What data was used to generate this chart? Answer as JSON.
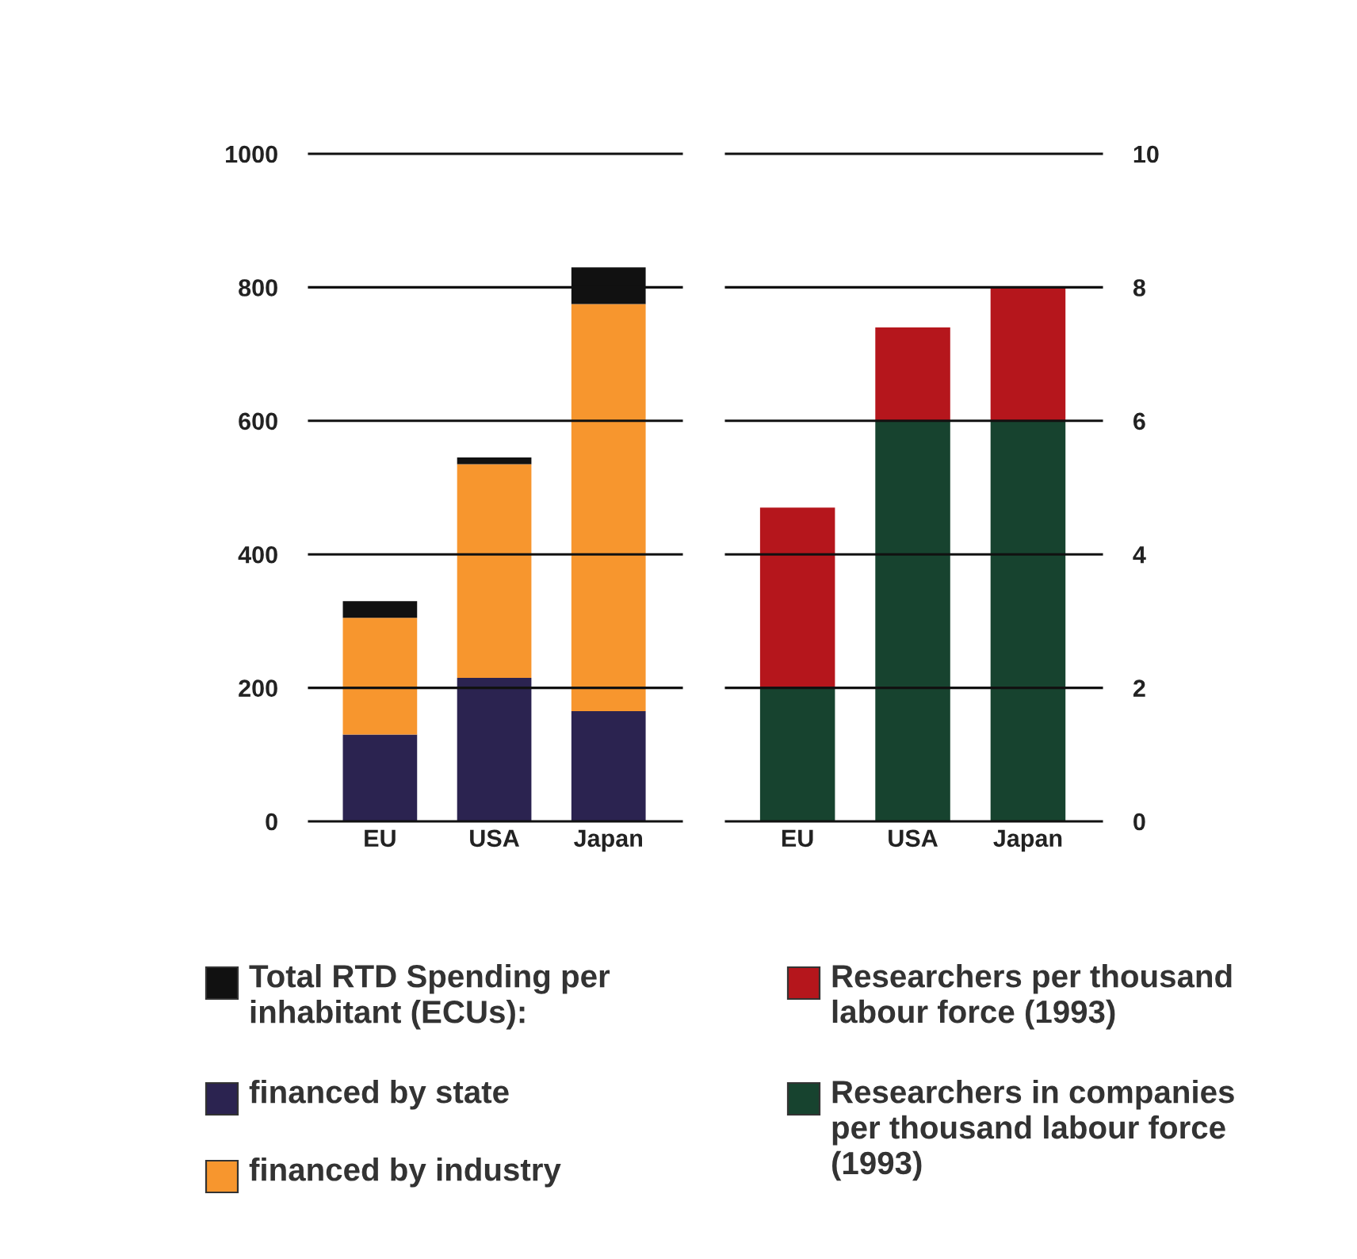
{
  "chart_data": [
    {
      "type": "bar",
      "stacked": true,
      "categories": [
        "EU",
        "USA",
        "Japan"
      ],
      "ylim": [
        0,
        1000
      ],
      "yticks": [
        0,
        200,
        400,
        600,
        800,
        1000
      ],
      "grid": "y",
      "legend": "bottom",
      "series": [
        {
          "name": "financed by state",
          "color": "#2b2350",
          "values": [
            130,
            215,
            165
          ]
        },
        {
          "name": "financed by industry",
          "color": "#f7962e",
          "values": [
            175,
            320,
            610
          ]
        },
        {
          "name": "Total RTD Spending per\ninhabitant (ECUs):",
          "color": "#111111",
          "values": [
            25,
            10,
            55
          ]
        }
      ]
    },
    {
      "type": "bar",
      "stacked": true,
      "categories": [
        "EU",
        "USA",
        "Japan"
      ],
      "y2lim": [
        0,
        10
      ],
      "y2ticks": [
        0,
        2,
        4,
        6,
        8,
        10
      ],
      "grid": "y",
      "legend": "bottom",
      "series": [
        {
          "name": "Researchers in companies\nper thousand labour force\n(1993)",
          "color": "#17432f",
          "values": [
            2.0,
            6.0,
            6.0
          ],
          "axis": "y2"
        },
        {
          "name": "Researchers per thousand\nlabour force (1993)",
          "color": "#b5161c",
          "values": [
            2.7,
            1.4,
            2.0
          ],
          "axis": "y2"
        }
      ]
    }
  ]
}
